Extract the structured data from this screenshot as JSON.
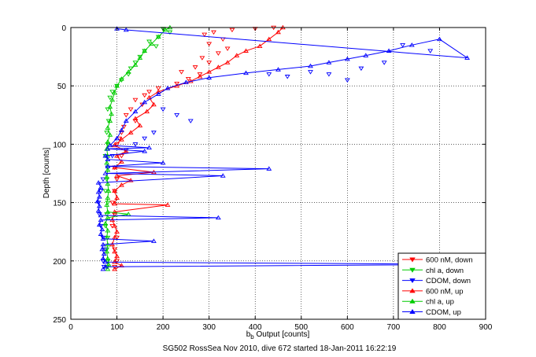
{
  "chart_data": {
    "type": "scatter",
    "xlabel_base": "b",
    "xlabel_sub": "b",
    "xlabel_rest": " Output [counts]",
    "ylabel": "Depth [counts]",
    "caption": "SG502 RossSea Nov 2010, dive 672 started 18-Jan-2011 16:22:19",
    "xlim": [
      0,
      900
    ],
    "ylim": [
      0,
      250
    ],
    "y_reversed": true,
    "grid": true,
    "legend_position": "bottom-right",
    "x_ticks": [
      "0",
      "100",
      "200",
      "300",
      "400",
      "500",
      "600",
      "700",
      "800",
      "900"
    ],
    "y_ticks": [
      "0",
      "50",
      "100",
      "150",
      "200",
      "250"
    ],
    "legend": [
      {
        "label": "600 nM, down",
        "color": "#ff0000",
        "marker": "triangle-down"
      },
      {
        "label": "chl a, down",
        "color": "#00cc00",
        "marker": "triangle-down"
      },
      {
        "label": "CDOM, down",
        "color": "#0000ff",
        "marker": "triangle-down"
      },
      {
        "label": "600 nM, up",
        "color": "#ff0000",
        "marker": "triangle-up"
      },
      {
        "label": "chl a, up",
        "color": "#00cc00",
        "marker": "triangle-up"
      },
      {
        "label": "CDOM, up",
        "color": "#0000ff",
        "marker": "triangle-up"
      }
    ],
    "series": [
      {
        "name": "600 nM, down",
        "color": "#ff0000",
        "marker": "triangle-down",
        "line": false,
        "points": [
          [
            440,
            0
          ],
          [
            400,
            1
          ],
          [
            350,
            2
          ],
          [
            310,
            4
          ],
          [
            290,
            6
          ],
          [
            330,
            10
          ],
          [
            300,
            14
          ],
          [
            340,
            18
          ],
          [
            320,
            22
          ],
          [
            285,
            26
          ],
          [
            300,
            30
          ],
          [
            270,
            34
          ],
          [
            240,
            38
          ],
          [
            280,
            40
          ],
          [
            255,
            44
          ],
          [
            230,
            48
          ],
          [
            190,
            52
          ],
          [
            170,
            55
          ],
          [
            160,
            58
          ],
          [
            140,
            62
          ],
          [
            155,
            66
          ],
          [
            130,
            70
          ],
          [
            120,
            75
          ],
          [
            140,
            80
          ],
          [
            115,
            85
          ],
          [
            110,
            90
          ],
          [
            105,
            95
          ],
          [
            100,
            100
          ],
          [
            110,
            110
          ],
          [
            95,
            120
          ],
          [
            100,
            130
          ],
          [
            95,
            140
          ],
          [
            90,
            150
          ],
          [
            95,
            160
          ],
          [
            90,
            170
          ],
          [
            100,
            180
          ],
          [
            95,
            190
          ],
          [
            100,
            200
          ],
          [
            95,
            205
          ]
        ]
      },
      {
        "name": "chl a, down",
        "color": "#00cc00",
        "marker": "triangle-down",
        "line": false,
        "points": [
          [
            200,
            1
          ],
          [
            215,
            4
          ],
          [
            190,
            8
          ],
          [
            170,
            12
          ],
          [
            185,
            16
          ],
          [
            160,
            20
          ],
          [
            150,
            25
          ],
          [
            140,
            30
          ],
          [
            130,
            35
          ],
          [
            125,
            40
          ],
          [
            110,
            45
          ],
          [
            100,
            50
          ],
          [
            90,
            55
          ],
          [
            85,
            60
          ],
          [
            80,
            70
          ],
          [
            82,
            80
          ],
          [
            78,
            90
          ],
          [
            80,
            100
          ],
          [
            75,
            110
          ],
          [
            80,
            120
          ],
          [
            78,
            130
          ],
          [
            75,
            140
          ],
          [
            80,
            150
          ],
          [
            78,
            160
          ],
          [
            75,
            170
          ],
          [
            80,
            180
          ],
          [
            78,
            190
          ],
          [
            80,
            200
          ],
          [
            78,
            205
          ]
        ]
      },
      {
        "name": "CDOM, down",
        "color": "#0000ff",
        "marker": "triangle-down",
        "line": false,
        "points": [
          [
            780,
            20
          ],
          [
            720,
            15
          ],
          [
            680,
            30
          ],
          [
            630,
            35
          ],
          [
            600,
            45
          ],
          [
            560,
            40
          ],
          [
            520,
            38
          ],
          [
            470,
            42
          ],
          [
            430,
            40
          ],
          [
            260,
            80
          ],
          [
            230,
            75
          ],
          [
            200,
            70
          ],
          [
            180,
            90
          ],
          [
            160,
            95
          ],
          [
            140,
            100
          ],
          [
            120,
            105
          ],
          [
            90,
            110
          ],
          [
            80,
            120
          ],
          [
            70,
            130
          ],
          [
            65,
            140
          ],
          [
            60,
            150
          ],
          [
            62,
            160
          ],
          [
            65,
            170
          ],
          [
            70,
            180
          ],
          [
            75,
            190
          ],
          [
            70,
            200
          ],
          [
            72,
            205
          ]
        ]
      },
      {
        "name": "600 nM, up",
        "color": "#ff0000",
        "marker": "triangle-up",
        "line": true,
        "points": [
          [
            95,
            207
          ],
          [
            110,
            204
          ],
          [
            95,
            201
          ],
          [
            100,
            196
          ],
          [
            95,
            192
          ],
          [
            90,
            186
          ],
          [
            95,
            180
          ],
          [
            100,
            175
          ],
          [
            95,
            170
          ],
          [
            90,
            165
          ],
          [
            95,
            158
          ],
          [
            210,
            152
          ],
          [
            95,
            151
          ],
          [
            100,
            146
          ],
          [
            95,
            140
          ],
          [
            110,
            135
          ],
          [
            130,
            131
          ],
          [
            100,
            127
          ],
          [
            180,
            124
          ],
          [
            95,
            120
          ],
          [
            110,
            115
          ],
          [
            100,
            110
          ],
          [
            120,
            106
          ],
          [
            95,
            101
          ],
          [
            110,
            96
          ],
          [
            130,
            90
          ],
          [
            150,
            84
          ],
          [
            140,
            78
          ],
          [
            165,
            72
          ],
          [
            180,
            66
          ],
          [
            170,
            60
          ],
          [
            190,
            55
          ],
          [
            230,
            50
          ],
          [
            260,
            46
          ],
          [
            280,
            42
          ],
          [
            300,
            38
          ],
          [
            320,
            34
          ],
          [
            340,
            30
          ],
          [
            360,
            24
          ],
          [
            380,
            20
          ],
          [
            410,
            16
          ],
          [
            430,
            10
          ],
          [
            450,
            4
          ],
          [
            460,
            0
          ]
        ]
      },
      {
        "name": "chl a, up",
        "color": "#00cc00",
        "marker": "triangle-up",
        "line": true,
        "points": [
          [
            80,
            207
          ],
          [
            82,
            203
          ],
          [
            80,
            198
          ],
          [
            78,
            192
          ],
          [
            80,
            186
          ],
          [
            78,
            180
          ],
          [
            80,
            174
          ],
          [
            75,
            168
          ],
          [
            80,
            163
          ],
          [
            125,
            160
          ],
          [
            80,
            158
          ],
          [
            78,
            152
          ],
          [
            80,
            146
          ],
          [
            82,
            140
          ],
          [
            80,
            134
          ],
          [
            78,
            128
          ],
          [
            80,
            122
          ],
          [
            78,
            116
          ],
          [
            80,
            110
          ],
          [
            78,
            104
          ],
          [
            80,
            98
          ],
          [
            85,
            92
          ],
          [
            80,
            86
          ],
          [
            85,
            80
          ],
          [
            88,
            74
          ],
          [
            85,
            68
          ],
          [
            90,
            62
          ],
          [
            95,
            56
          ],
          [
            100,
            50
          ],
          [
            110,
            44
          ],
          [
            125,
            38
          ],
          [
            140,
            32
          ],
          [
            150,
            26
          ],
          [
            160,
            20
          ],
          [
            175,
            14
          ],
          [
            190,
            8
          ],
          [
            205,
            2
          ],
          [
            215,
            0
          ]
        ]
      },
      {
        "name": "CDOM, up",
        "color": "#0000ff",
        "marker": "triangle-up",
        "line": true,
        "points": [
          [
            70,
            207
          ],
          [
            75,
            205
          ],
          [
            880,
            203
          ],
          [
            75,
            201
          ],
          [
            70,
            198
          ],
          [
            72,
            194
          ],
          [
            68,
            190
          ],
          [
            70,
            186
          ],
          [
            180,
            183
          ],
          [
            70,
            181
          ],
          [
            65,
            177
          ],
          [
            68,
            173
          ],
          [
            62,
            169
          ],
          [
            65,
            165
          ],
          [
            320,
            163
          ],
          [
            65,
            161
          ],
          [
            60,
            157
          ],
          [
            62,
            153
          ],
          [
            58,
            149
          ],
          [
            62,
            145
          ],
          [
            60,
            141
          ],
          [
            65,
            137
          ],
          [
            60,
            133
          ],
          [
            330,
            127
          ],
          [
            75,
            125
          ],
          [
            430,
            121
          ],
          [
            80,
            119
          ],
          [
            200,
            116
          ],
          [
            80,
            113
          ],
          [
            75,
            110
          ],
          [
            160,
            106
          ],
          [
            80,
            104
          ],
          [
            170,
            103
          ],
          [
            85,
            101
          ],
          [
            100,
            95
          ],
          [
            110,
            88
          ],
          [
            120,
            80
          ],
          [
            140,
            72
          ],
          [
            160,
            64
          ],
          [
            190,
            57
          ],
          [
            210,
            52
          ],
          [
            250,
            47
          ],
          [
            300,
            43
          ],
          [
            380,
            39
          ],
          [
            450,
            36
          ],
          [
            520,
            33
          ],
          [
            560,
            30
          ],
          [
            600,
            27
          ],
          [
            640,
            24
          ],
          [
            690,
            20
          ],
          [
            740,
            15
          ],
          [
            800,
            10
          ],
          [
            860,
            26
          ],
          [
            120,
            2
          ],
          [
            100,
            1
          ]
        ]
      }
    ]
  }
}
